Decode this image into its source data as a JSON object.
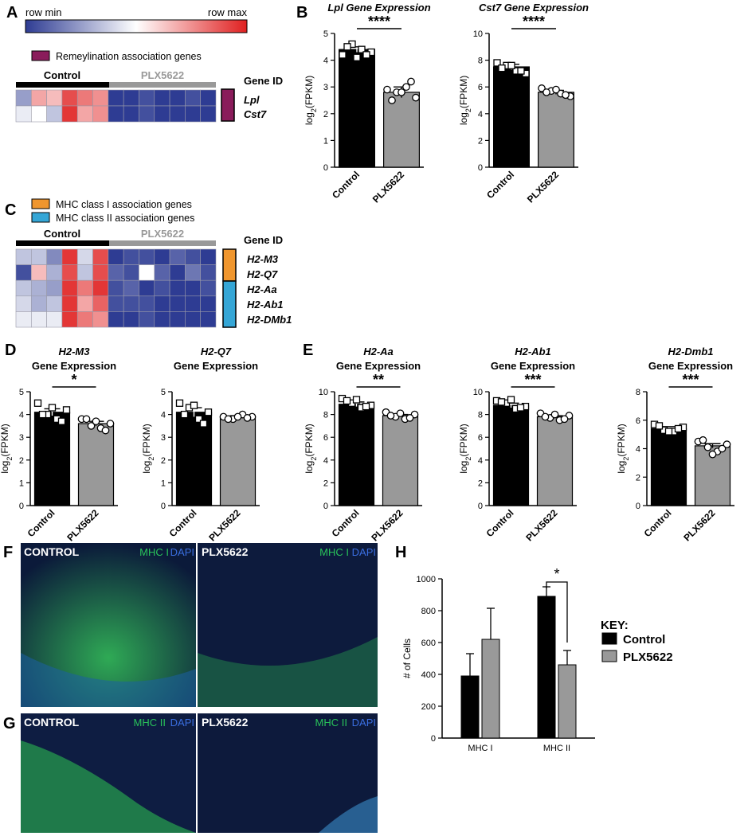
{
  "panels": {
    "A": {
      "letter": "A",
      "colorbar": {
        "min_label": "row min",
        "max_label": "row max"
      },
      "legend": [
        {
          "label": "Remeylination association genes",
          "color": "#8a1c5b"
        }
      ],
      "groups": [
        "Control",
        "PLX5622"
      ],
      "gene_id_header": "Gene ID",
      "genes": [
        "Lpl",
        "Cst7"
      ],
      "gene_group_colors": [
        "#8a1c5b"
      ],
      "heatmap": [
        [
          -0.5,
          0.4,
          0.3,
          0.8,
          0.6,
          0.5,
          -1,
          -1,
          -0.9,
          -1,
          -1,
          -0.9,
          -1
        ],
        [
          -0.1,
          0.0,
          -0.3,
          0.9,
          0.4,
          0.5,
          -1,
          -1,
          -0.9,
          -1,
          -1,
          -1,
          -1
        ]
      ]
    },
    "C": {
      "letter": "C",
      "legend": [
        {
          "label": "MHC class I association genes",
          "color": "#f0962e"
        },
        {
          "label": "MHC class II association genes",
          "color": "#35a6d6"
        }
      ],
      "groups": [
        "Control",
        "PLX5622"
      ],
      "gene_id_header": "Gene ID",
      "genes": [
        "H2-M3",
        "H2-Q7",
        "H2-Aa",
        "H2-Ab1",
        "H2-DMb1"
      ],
      "heatmap": [
        [
          -0.3,
          -0.3,
          -0.6,
          0.9,
          -0.2,
          0.8,
          -1,
          -0.9,
          -0.9,
          -1,
          -0.8,
          -0.9,
          -1
        ],
        [
          -0.9,
          0.3,
          -0.4,
          0.8,
          -0.3,
          0.8,
          -0.8,
          -0.9,
          0.0,
          -0.8,
          -1,
          -0.7,
          -0.9
        ],
        [
          -0.3,
          -0.4,
          -0.5,
          0.9,
          0.6,
          0.9,
          -0.9,
          -0.8,
          -1,
          -0.9,
          -1,
          -1,
          -0.9
        ],
        [
          -0.2,
          -0.4,
          -0.3,
          0.9,
          0.4,
          0.7,
          -0.9,
          -0.9,
          -0.9,
          -1,
          -1,
          -1,
          -1
        ],
        [
          -0.1,
          -0.1,
          -0.1,
          0.9,
          0.6,
          0.5,
          -1,
          -1,
          -0.9,
          -1,
          -1,
          -1,
          -1
        ]
      ]
    },
    "B": {
      "letter": "B"
    },
    "D": {
      "letter": "D"
    },
    "E": {
      "letter": "E"
    },
    "F": {
      "letter": "F",
      "left_label": "CONTROL",
      "right_label": "PLX5622",
      "stain": "MHC I",
      "dapi": "DAPI"
    },
    "G": {
      "letter": "G",
      "left_label": "CONTROL",
      "right_label": "PLX5622",
      "stain": "MHC II",
      "dapi": "DAPI"
    },
    "H": {
      "letter": "H"
    }
  },
  "chart_data": [
    {
      "id": "B1",
      "type": "bar",
      "title": "Lpl Gene Expression",
      "title_italic_part": "Lpl",
      "ylabel": "log2(FPKM)",
      "categories": [
        "Control",
        "PLX5622"
      ],
      "values": [
        4.4,
        2.8
      ],
      "errors": [
        0.1,
        0.2
      ],
      "ylim": [
        0,
        5
      ],
      "yticks": [
        0,
        1,
        2,
        3,
        4,
        5
      ],
      "significance": "****",
      "points": [
        [
          4.2,
          4.6,
          4.4,
          4.3,
          4.5,
          4.1,
          4.2
        ],
        [
          2.9,
          2.8,
          3.0,
          2.6,
          2.5,
          2.8,
          3.2
        ]
      ]
    },
    {
      "id": "B2",
      "type": "bar",
      "title": "Cst7 Gene Expression",
      "ylabel": "log2(FPKM)",
      "categories": [
        "Control",
        "PLX5622"
      ],
      "values": [
        7.5,
        5.6
      ],
      "errors": [
        0.2,
        0.15
      ],
      "ylim": [
        0,
        10
      ],
      "yticks": [
        0,
        2,
        4,
        6,
        8,
        10
      ],
      "significance": "****",
      "points": [
        [
          7.8,
          7.6,
          7.2,
          7.0,
          7.4,
          7.6,
          7.2
        ],
        [
          5.9,
          5.7,
          5.5,
          5.3,
          5.6,
          5.8,
          5.4
        ]
      ]
    },
    {
      "id": "D1",
      "type": "bar",
      "title": "H2-M3",
      "subtitle": "Gene Expression",
      "ylabel": "log2(FPKM)",
      "categories": [
        "Control",
        "PLX5622"
      ],
      "values": [
        4.1,
        3.6
      ],
      "errors": [
        0.15,
        0.1
      ],
      "ylim": [
        0,
        5
      ],
      "yticks": [
        0,
        1,
        2,
        3,
        4,
        5
      ],
      "significance": "*",
      "points": [
        [
          4.5,
          4.0,
          3.8,
          4.2,
          4.0,
          4.3,
          3.7
        ],
        [
          3.8,
          3.5,
          3.4,
          3.6,
          3.8,
          3.7,
          3.3
        ]
      ]
    },
    {
      "id": "D2",
      "type": "bar",
      "title": "H2-Q7",
      "subtitle": "Gene Expression",
      "ylabel": "log2(FPKM)",
      "categories": [
        "Control",
        "PLX5622"
      ],
      "values": [
        4.1,
        3.9
      ],
      "errors": [
        0.2,
        0.05
      ],
      "ylim": [
        0,
        5
      ],
      "yticks": [
        0,
        1,
        2,
        3,
        4,
        5
      ],
      "significance": "",
      "points": [
        [
          4.5,
          4.3,
          3.8,
          4.1,
          4.0,
          4.4,
          3.6
        ],
        [
          3.9,
          3.8,
          4.0,
          3.9,
          3.8,
          3.9,
          3.85
        ]
      ]
    },
    {
      "id": "E1",
      "type": "bar",
      "title": "H2-Aa",
      "subtitle": "Gene Expression",
      "ylabel": "log2(FPKM)",
      "categories": [
        "Control",
        "PLX5622"
      ],
      "values": [
        8.9,
        7.9
      ],
      "errors": [
        0.2,
        0.1
      ],
      "ylim": [
        0,
        10
      ],
      "yticks": [
        0,
        2,
        4,
        6,
        8,
        10
      ],
      "significance": "**",
      "points": [
        [
          9.4,
          9.0,
          8.6,
          8.8,
          9.2,
          9.3,
          8.7
        ],
        [
          8.2,
          7.8,
          7.6,
          8.0,
          7.9,
          8.1,
          7.7
        ]
      ]
    },
    {
      "id": "E2",
      "type": "bar",
      "title": "H2-Ab1",
      "subtitle": "Gene Expression",
      "ylabel": "log2(FPKM)",
      "categories": [
        "Control",
        "PLX5622"
      ],
      "values": [
        8.8,
        7.8
      ],
      "errors": [
        0.2,
        0.1
      ],
      "ylim": [
        0,
        10
      ],
      "yticks": [
        0,
        2,
        4,
        6,
        8,
        10
      ],
      "significance": "***",
      "points": [
        [
          9.2,
          9.0,
          8.5,
          8.7,
          9.1,
          9.3,
          8.6
        ],
        [
          8.1,
          7.7,
          7.5,
          7.9,
          7.8,
          8.0,
          7.6
        ]
      ]
    },
    {
      "id": "E3",
      "type": "bar",
      "title": "H2-Dmb1",
      "subtitle": "Gene Expression",
      "ylabel": "log2(FPKM)",
      "categories": [
        "Control",
        "PLX5622"
      ],
      "values": [
        5.4,
        4.2
      ],
      "errors": [
        0.15,
        0.15
      ],
      "ylim": [
        0,
        8
      ],
      "yticks": [
        0,
        2,
        4,
        6,
        8
      ],
      "significance": "***",
      "points": [
        [
          5.7,
          5.3,
          5.2,
          5.5,
          5.6,
          5.2,
          5.4
        ],
        [
          4.5,
          4.1,
          3.8,
          4.3,
          4.6,
          3.6,
          4.0
        ]
      ]
    },
    {
      "id": "H",
      "type": "bar",
      "ylabel": "# of Cells",
      "categories": [
        "MHC I",
        "MHC II"
      ],
      "series": [
        {
          "name": "Control",
          "color": "#000000",
          "values": [
            390,
            890
          ],
          "errors": [
            140,
            60
          ]
        },
        {
          "name": "PLX5622",
          "color": "#999999",
          "values": [
            620,
            460
          ],
          "errors": [
            195,
            90
          ]
        }
      ],
      "ylim": [
        0,
        1000
      ],
      "yticks": [
        0,
        200,
        400,
        600,
        800,
        1000
      ],
      "significance": "*",
      "legend_title": "KEY:"
    }
  ]
}
